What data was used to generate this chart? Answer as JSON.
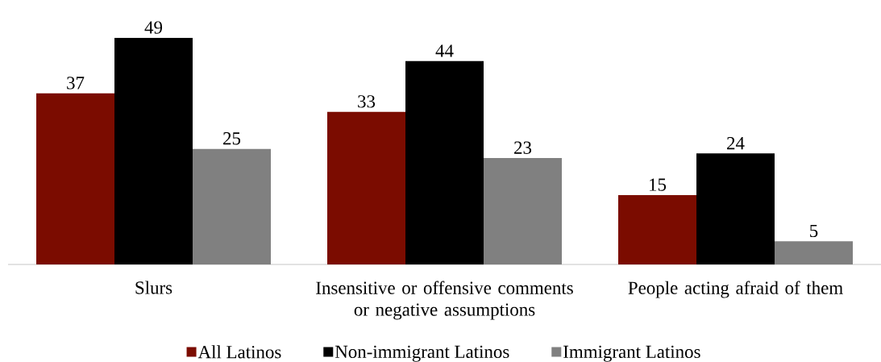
{
  "chart_data": {
    "type": "bar",
    "categories": [
      "Slurs",
      "Insensitive or offensive comments or negative assumptions",
      "People acting afraid of them"
    ],
    "series": [
      {
        "name": "All Latinos",
        "color": "#7b0c00",
        "values": [
          37,
          33,
          15
        ]
      },
      {
        "name": "Non-immigrant Latinos",
        "color": "#000000",
        "values": [
          49,
          44,
          24
        ]
      },
      {
        "name": "Immigrant Latinos",
        "color": "#808080",
        "values": [
          25,
          23,
          5
        ]
      }
    ],
    "data_labels": true,
    "legend": "bottom"
  }
}
